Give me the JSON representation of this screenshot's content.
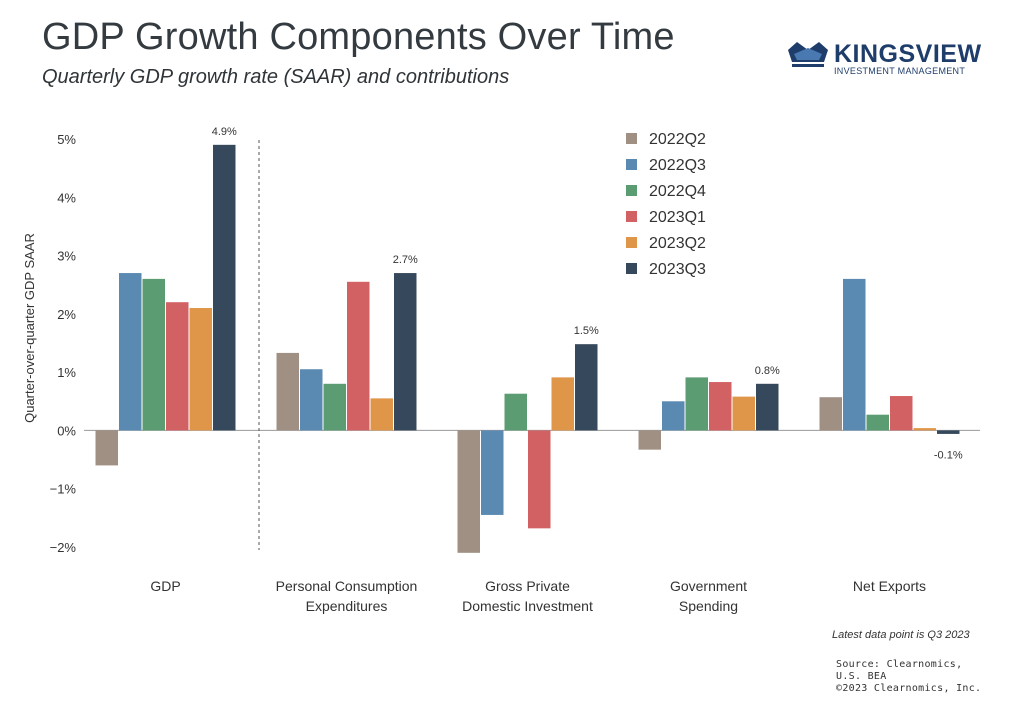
{
  "header": {
    "title": "GDP Growth Components Over Time",
    "subtitle": "Quarterly GDP growth rate (SAAR) and contributions"
  },
  "logo": {
    "name": "KINGSVIEW",
    "tagline": "INVESTMENT MANAGEMENT",
    "color": "#1e3d6b"
  },
  "footer": {
    "latest_note": "Latest data point is Q3 2023",
    "source_lines": [
      "Source: Clearnomics,",
      "U.S. BEA",
      "©2023 Clearnomics, Inc."
    ]
  },
  "chart_data": {
    "type": "bar",
    "ylabel": "Quarter-over-quarter GDP SAAR",
    "ylim": [
      -2,
      5
    ],
    "yticks": [
      -2,
      -1,
      0,
      1,
      2,
      3,
      4,
      5
    ],
    "ytick_labels": [
      "−2%",
      "−1%",
      "0%",
      "1%",
      "2%",
      "3%",
      "4%",
      "5%"
    ],
    "categories": [
      [
        "GDP"
      ],
      [
        "Personal Consumption",
        "Expenditures"
      ],
      [
        "Gross Private",
        "Domestic Investment"
      ],
      [
        "Government",
        "Spending"
      ],
      [
        "Net Exports"
      ]
    ],
    "series": [
      {
        "name": "2022Q2",
        "color": "#a09083",
        "values": [
          -0.6,
          1.33,
          -2.1,
          -0.33,
          0.57
        ]
      },
      {
        "name": "2022Q3",
        "color": "#5a8ab2",
        "values": [
          2.7,
          1.05,
          -1.45,
          0.5,
          2.6
        ]
      },
      {
        "name": "2022Q4",
        "color": "#5c9c72",
        "values": [
          2.6,
          0.8,
          0.63,
          0.91,
          0.27
        ]
      },
      {
        "name": "2023Q1",
        "color": "#d26163",
        "values": [
          2.2,
          2.55,
          -1.68,
          0.83,
          0.59
        ]
      },
      {
        "name": "2023Q2",
        "color": "#df9648",
        "values": [
          2.1,
          0.55,
          0.91,
          0.58,
          0.04
        ]
      },
      {
        "name": "2023Q3",
        "color": "#36495c",
        "values": [
          4.9,
          2.7,
          1.48,
          0.8,
          -0.06
        ]
      }
    ],
    "data_labels": [
      "4.9%",
      "2.7%",
      "1.5%",
      "0.8%",
      "-0.1%"
    ],
    "legend_position": "top-right",
    "divider_after_first_group": true,
    "grid": false
  }
}
